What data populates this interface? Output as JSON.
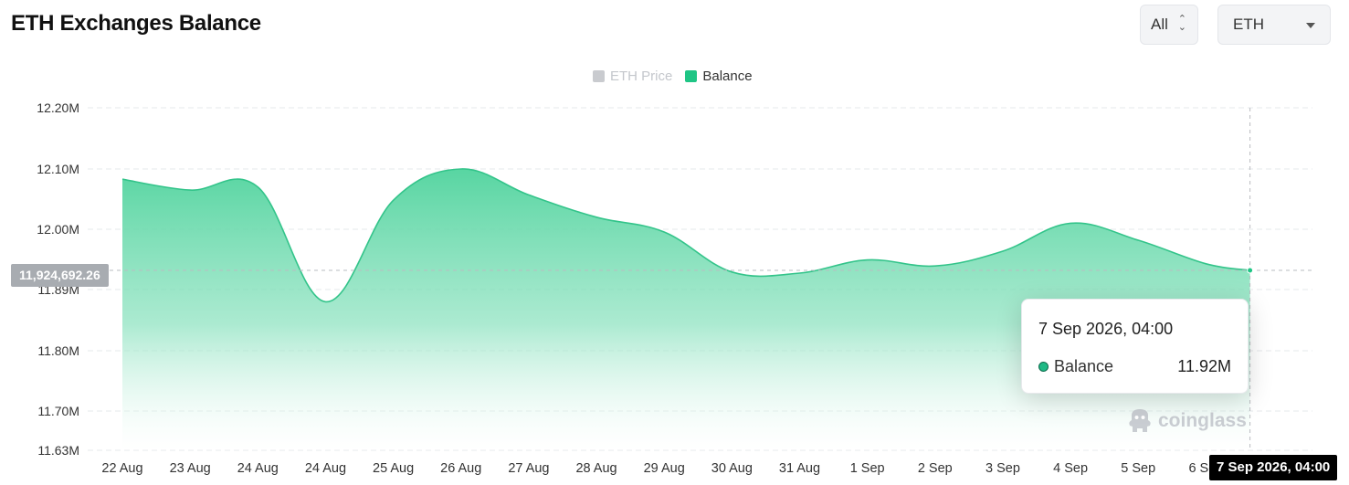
{
  "header": {
    "title": "ETH Exchanges Balance",
    "range_value": "All",
    "coin_value": "ETH"
  },
  "legend": [
    {
      "label": "ETH Price",
      "color": "#c9cbcf",
      "active": false
    },
    {
      "label": "Balance",
      "color": "#1fc585",
      "active": true
    }
  ],
  "tooltip": {
    "time": "7 Sep 2026, 04:00",
    "series": "Balance",
    "value": "11.92M"
  },
  "crosshair": {
    "y_label": "11,924,692.26",
    "x_label": "7 Sep 2026, 04:00"
  },
  "watermark": "coinglass",
  "colors": {
    "accent": "#1fc585",
    "area_top": "#5ad6a4",
    "grid": "#e8eaed"
  },
  "chart_data": {
    "type": "area",
    "title": "ETH Exchanges Balance",
    "xlabel": "",
    "ylabel": "",
    "x_ticks": [
      "22 Aug",
      "23 Aug",
      "24 Aug",
      "24 Aug",
      "25 Aug",
      "26 Aug",
      "27 Aug",
      "28 Aug",
      "29 Aug",
      "30 Aug",
      "31 Aug",
      "1 Sep",
      "2 Sep",
      "3 Sep",
      "4 Sep",
      "5 Sep",
      "6 Sep"
    ],
    "y_ticks": [
      "12.20M",
      "12.10M",
      "12.00M",
      "11.89M",
      "11.80M",
      "11.70M",
      "11.63M"
    ],
    "y_tick_values": [
      12.2,
      12.1,
      12.0,
      11.89,
      11.8,
      11.7,
      11.63
    ],
    "ylim": [
      11.63,
      12.2
    ],
    "grid": true,
    "legend_position": "top-center",
    "series": [
      {
        "name": "Balance",
        "unit": "M",
        "x": [
          0,
          1,
          2,
          3,
          4,
          5,
          6,
          7,
          8,
          9,
          10,
          11,
          12,
          13,
          14,
          15,
          16,
          16.65
        ],
        "values": [
          12.083,
          12.065,
          12.07,
          11.872,
          12.048,
          12.1,
          12.057,
          12.02,
          11.995,
          11.922,
          11.92,
          11.944,
          11.933,
          11.96,
          12.01,
          11.98,
          11.937,
          11.925
        ]
      }
    ]
  }
}
